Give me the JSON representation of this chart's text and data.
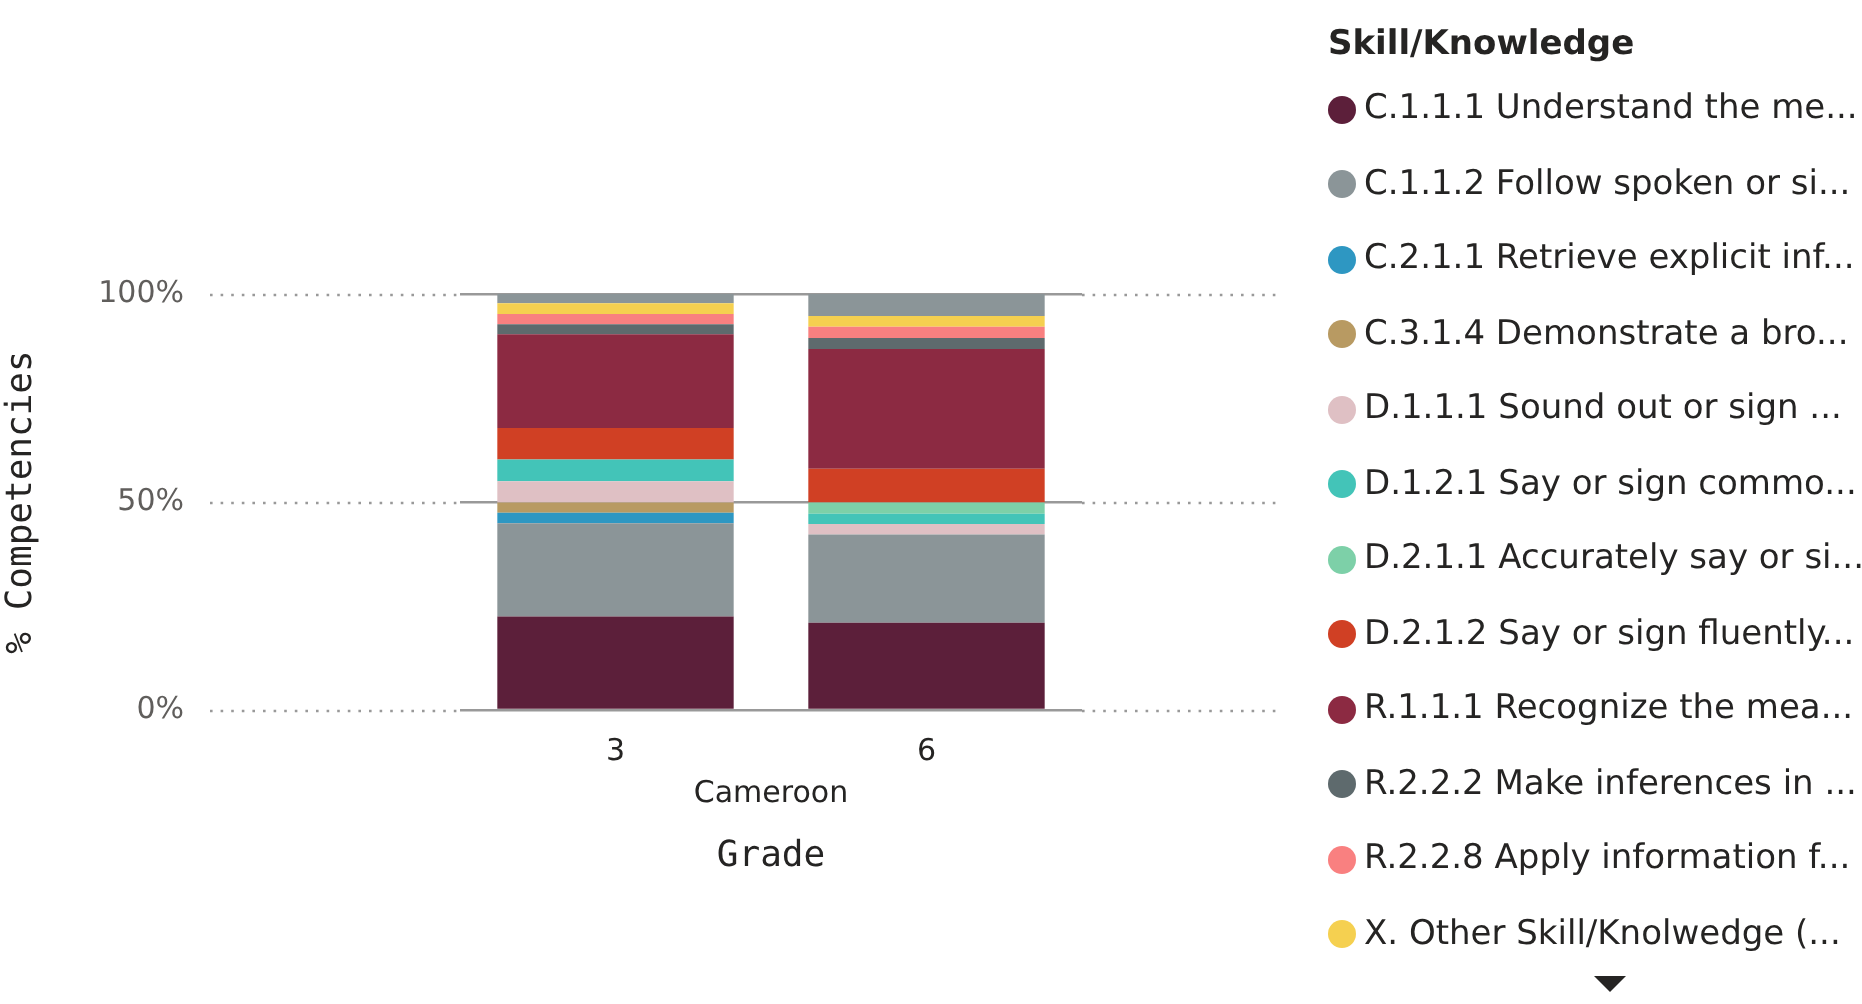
{
  "chart_data": {
    "type": "bar",
    "stacked": true,
    "xlabel": "Grade",
    "ylabel": "% Competencies",
    "legend_title": "Skill/Knowledge",
    "legend": "right",
    "grid": "y",
    "categories": [
      "3",
      "6"
    ],
    "annotations": [
      "Cameroon"
    ],
    "ylim": [
      0,
      100
    ],
    "yticks": [
      {
        "value": 0,
        "label": "0%"
      },
      {
        "value": 50,
        "label": "50%"
      },
      {
        "value": 100,
        "label": "100%"
      }
    ],
    "series": [
      {
        "name": "C.1.1.1 Understand the me...",
        "color": "#5c1f3a",
        "values": [
          22.5,
          21.0
        ]
      },
      {
        "name": "C.1.1.2 Follow spoken or si...",
        "color": "#8b9598",
        "values": [
          22.4,
          21.2
        ]
      },
      {
        "name": "C.2.1.1 Retrieve explicit inf...",
        "color": "#2e97c2",
        "values": [
          2.5,
          0
        ]
      },
      {
        "name": "C.3.1.4 Demonstrate a bro...",
        "color": "#b89a62",
        "values": [
          2.5,
          0
        ]
      },
      {
        "name": "D.1.1.1 Sound out or sign ...",
        "color": "#dfc0c4",
        "values": [
          5.1,
          2.5
        ]
      },
      {
        "name": "D.1.2.1 Say or sign commo...",
        "color": "#43c4b8",
        "values": [
          5.2,
          2.5
        ]
      },
      {
        "name": "D.2.1.1 Accurately say or si...",
        "color": "#7dd0a8",
        "values": [
          0,
          2.7
        ]
      },
      {
        "name": "D.2.1.2 Say or sign fluently...",
        "color": "#d04024",
        "values": [
          7.6,
          8.1
        ]
      },
      {
        "name": "R.1.1.1 Recognize the mea...",
        "color": "#8c2a42",
        "values": [
          22.5,
          28.8
        ]
      },
      {
        "name": "R.2.2.2 Make inferences in ...",
        "color": "#5e6a6d",
        "values": [
          2.4,
          2.6
        ]
      },
      {
        "name": "R.2.2.8 Apply information f...",
        "color": "#f98080",
        "values": [
          2.5,
          2.7
        ]
      },
      {
        "name": "X. Other Skill/Knolwedge (...",
        "color": "#f5d050",
        "values": [
          2.6,
          2.6
        ]
      },
      {
        "color": "#8b9598",
        "values": [
          2.2,
          5.3
        ]
      }
    ]
  }
}
